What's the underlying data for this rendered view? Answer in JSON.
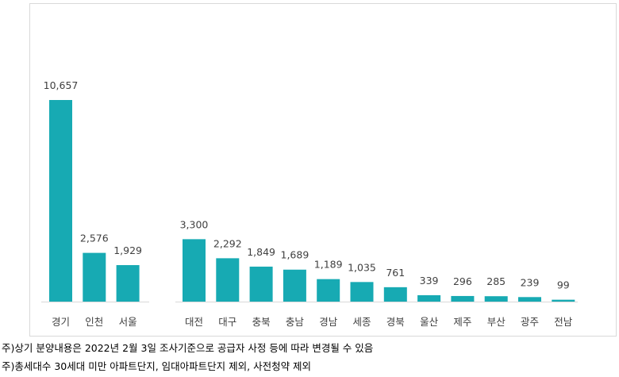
{
  "chart_data": {
    "type": "bar",
    "groups": [
      {
        "categories": [
          "경기",
          "인천",
          "서울"
        ],
        "values": [
          10657,
          2576,
          1929
        ]
      },
      {
        "categories": [
          "대전",
          "대구",
          "충북",
          "충남",
          "경남",
          "세종",
          "경북",
          "울산",
          "제주",
          "부산",
          "광주",
          "전남"
        ],
        "values": [
          3300,
          2292,
          1849,
          1689,
          1189,
          1035,
          761,
          339,
          296,
          285,
          239,
          99
        ]
      }
    ],
    "value_labels": [
      [
        "10,657",
        "2,576",
        "1,929"
      ],
      [
        "3,300",
        "2,292",
        "1,849",
        "1,689",
        "1,189",
        "1,035",
        "761",
        "339",
        "296",
        "285",
        "239",
        "99"
      ]
    ],
    "bar_color": "#17aab3",
    "axis_color": "#d9d9d9",
    "grid": false,
    "legend": "none"
  },
  "notes": [
    "주)상기 분양내용은 2022년 2월 3일 조사기준으로 공급자 사정 등에 따라 변경될 수 있음",
    "주)총세대수 30세대 미만 아파트단지, 임대아파트단지 제외, 사전청약 제외"
  ]
}
